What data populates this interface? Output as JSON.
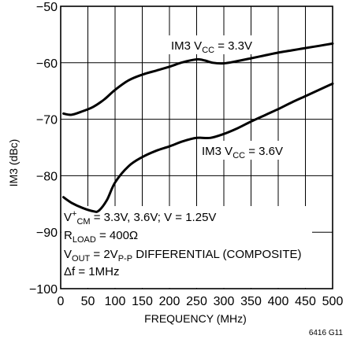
{
  "chart_data": {
    "type": "line",
    "xlabel": "FREQUENCY (MHz)",
    "ylabel": "IM3 (dBc)",
    "xlim": [
      0,
      500
    ],
    "ylim": [
      -100,
      -50
    ],
    "xticks": [
      0,
      50,
      100,
      150,
      200,
      250,
      300,
      350,
      400,
      450,
      500
    ],
    "yticks": [
      -100,
      -90,
      -80,
      -70,
      -60,
      -50
    ],
    "grid": true,
    "series": [
      {
        "name": "IM3 VCC = 3.3V",
        "label": {
          "pre": "IM3 V",
          "sub": "CC",
          "post": " = 3.3V"
        },
        "x": [
          5,
          20,
          40,
          60,
          80,
          100,
          125,
          150,
          175,
          200,
          225,
          250,
          265,
          280,
          300,
          325,
          350,
          375,
          400,
          425,
          450,
          475,
          500
        ],
        "y": [
          -69.0,
          -69.2,
          -68.6,
          -67.8,
          -66.5,
          -64.8,
          -63.1,
          -62.1,
          -61.4,
          -60.7,
          -59.9,
          -59.4,
          -59.6,
          -60.0,
          -60.1,
          -59.7,
          -59.2,
          -58.7,
          -58.2,
          -57.8,
          -57.4,
          -57.0,
          -56.6
        ]
      },
      {
        "name": "IM3 VCC = 3.6V",
        "label": {
          "pre": "IM3 V",
          "sub": "CC",
          "post": " = 3.6V"
        },
        "x": [
          5,
          20,
          40,
          60,
          70,
          85,
          100,
          125,
          150,
          175,
          200,
          225,
          250,
          275,
          300,
          325,
          350,
          375,
          400,
          425,
          450,
          475,
          500
        ],
        "y": [
          -83.8,
          -84.8,
          -85.7,
          -86.3,
          -86.2,
          -84.3,
          -81.2,
          -78.3,
          -76.7,
          -75.6,
          -74.8,
          -73.9,
          -73.3,
          -73.3,
          -72.6,
          -71.6,
          -70.4,
          -69.3,
          -68.2,
          -67.0,
          -65.9,
          -64.8,
          -63.7
        ]
      }
    ],
    "annotations": [
      {
        "pre": "V",
        "sup": "+",
        "post": " = 3.3V, 3.6V; V",
        "sub": "CM",
        "post2": " = 1.25V"
      },
      {
        "pre": "R",
        "sub": "LOAD",
        "post": " = 400Ω"
      },
      {
        "pre": "V",
        "sub": "OUT",
        "post": " = 2V",
        "sub2": "P-P",
        "post2": " DIFFERENTIAL (COMPOSITE)"
      },
      {
        "pre": "Δf = 1MHz"
      }
    ],
    "figure_id": "6416 G11"
  }
}
